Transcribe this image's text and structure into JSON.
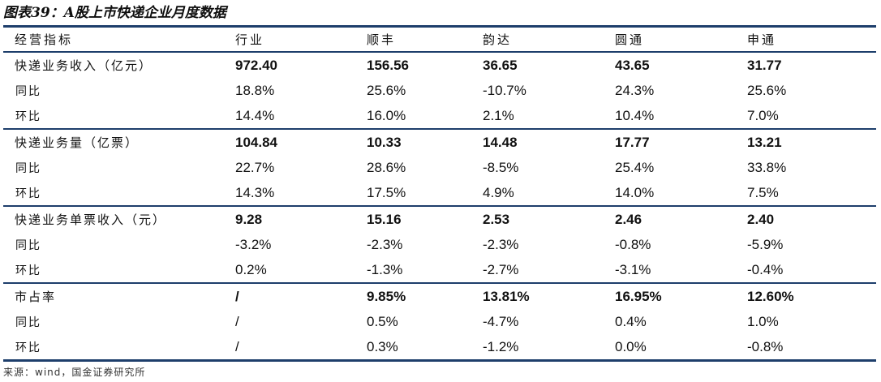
{
  "title": "图表39：A股上市快递企业月度数据",
  "header": [
    "经营指标",
    "行业",
    "顺丰",
    "韵达",
    "圆通",
    "申通"
  ],
  "sections": [
    {
      "rows": [
        {
          "label": "快递业务收入（亿元）",
          "values": [
            "972.40",
            "156.56",
            "36.65",
            "43.65",
            "31.77"
          ]
        },
        {
          "label": "同比",
          "values": [
            "18.8%",
            "25.6%",
            "-10.7%",
            "24.3%",
            "25.6%"
          ]
        },
        {
          "label": "环比",
          "values": [
            "14.4%",
            "16.0%",
            "2.1%",
            "10.4%",
            "7.0%"
          ]
        }
      ]
    },
    {
      "rows": [
        {
          "label": "快递业务量（亿票）",
          "values": [
            "104.84",
            "10.33",
            "14.48",
            "17.77",
            "13.21"
          ]
        },
        {
          "label": "同比",
          "values": [
            "22.7%",
            "28.6%",
            "-8.5%",
            "25.4%",
            "33.8%"
          ]
        },
        {
          "label": "环比",
          "values": [
            "14.3%",
            "17.5%",
            "4.9%",
            "14.0%",
            "7.5%"
          ]
        }
      ]
    },
    {
      "rows": [
        {
          "label": "快递业务单票收入（元）",
          "values": [
            "9.28",
            "15.16",
            "2.53",
            "2.46",
            "2.40"
          ]
        },
        {
          "label": "同比",
          "values": [
            "-3.2%",
            "-2.3%",
            "-2.3%",
            "-0.8%",
            "-5.9%"
          ]
        },
        {
          "label": "环比",
          "values": [
            "0.2%",
            "-1.3%",
            "-2.7%",
            "-3.1%",
            "-0.4%"
          ]
        }
      ]
    },
    {
      "rows": [
        {
          "label": "市占率",
          "values": [
            "/",
            "9.85%",
            "13.81%",
            "16.95%",
            "12.60%"
          ]
        },
        {
          "label": "同比",
          "values": [
            "/",
            "0.5%",
            "-4.7%",
            "0.4%",
            "1.0%"
          ]
        },
        {
          "label": "环比",
          "values": [
            "/",
            "0.3%",
            "-1.2%",
            "0.0%",
            "-0.8%"
          ]
        }
      ]
    }
  ],
  "source": "来源：wind，国金证券研究所"
}
